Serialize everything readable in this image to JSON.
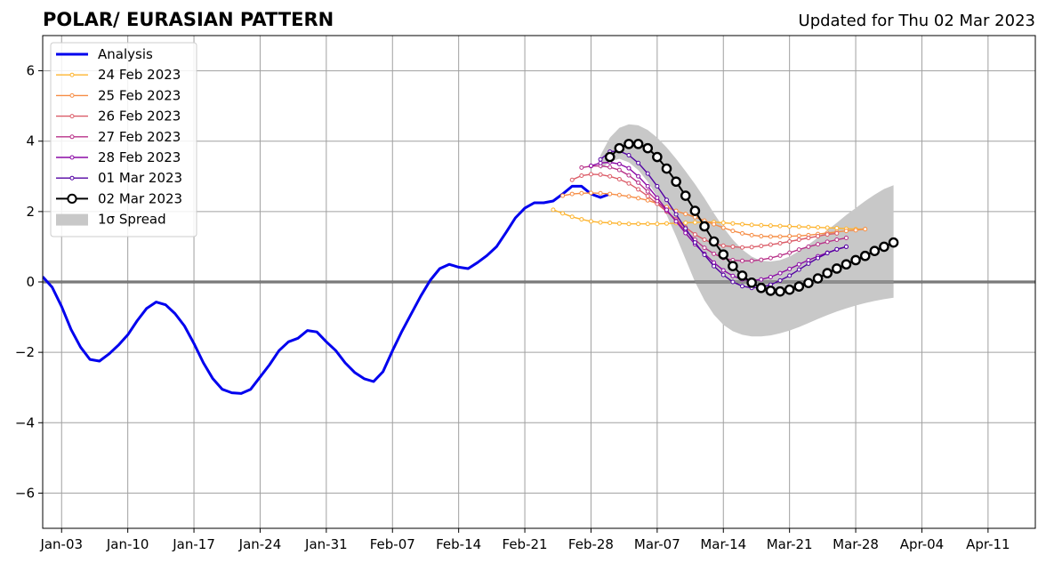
{
  "chart_data": {
    "type": "line",
    "title": "POLAR/ EURASIAN  PATTERN",
    "subtitle": "Updated for Thu 02 Mar 2023",
    "xlabel": "",
    "ylabel": "",
    "xlim": [
      "2023-01-01",
      "2023-04-16"
    ],
    "ylim": [
      -7,
      7
    ],
    "yticks": [
      -6,
      -4,
      -2,
      0,
      2,
      4,
      6
    ],
    "xticks": [
      {
        "date": "2023-01-03",
        "label": "Jan-03"
      },
      {
        "date": "2023-01-10",
        "label": "Jan-10"
      },
      {
        "date": "2023-01-17",
        "label": "Jan-17"
      },
      {
        "date": "2023-01-24",
        "label": "Jan-24"
      },
      {
        "date": "2023-01-31",
        "label": "Jan-31"
      },
      {
        "date": "2023-02-07",
        "label": "Feb-07"
      },
      {
        "date": "2023-02-14",
        "label": "Feb-14"
      },
      {
        "date": "2023-02-21",
        "label": "Feb-21"
      },
      {
        "date": "2023-02-28",
        "label": "Feb-28"
      },
      {
        "date": "2023-03-07",
        "label": "Mar-07"
      },
      {
        "date": "2023-03-14",
        "label": "Mar-14"
      },
      {
        "date": "2023-03-21",
        "label": "Mar-21"
      },
      {
        "date": "2023-03-28",
        "label": "Mar-28"
      },
      {
        "date": "2023-04-04",
        "label": "Apr-04"
      },
      {
        "date": "2023-04-11",
        "label": "Apr-11"
      }
    ],
    "grid": true,
    "legend_position": "top-left",
    "analysis": {
      "name": "Analysis",
      "color": "#0000ee",
      "start_date": "2023-01-01",
      "values": [
        0.15,
        -0.15,
        -0.7,
        -1.35,
        -1.85,
        -2.2,
        -2.25,
        -2.05,
        -1.8,
        -1.5,
        -1.1,
        -0.75,
        -0.57,
        -0.65,
        -0.9,
        -1.25,
        -1.75,
        -2.3,
        -2.75,
        -3.05,
        -3.15,
        -3.17,
        -3.05,
        -2.7,
        -2.35,
        -1.95,
        -1.7,
        -1.6,
        -1.38,
        -1.42,
        -1.7,
        -1.95,
        -2.3,
        -2.57,
        -2.75,
        -2.83,
        -2.55,
        -1.95,
        -1.4,
        -0.9,
        -0.4,
        0.05,
        0.38,
        0.5,
        0.42,
        0.38,
        0.55,
        0.75,
        1.0,
        1.4,
        1.82,
        2.1,
        2.25,
        2.25,
        2.3,
        2.5,
        2.72,
        2.72,
        2.5,
        2.4,
        2.5
      ]
    },
    "forecasts": [
      {
        "name": "24 Feb 2023",
        "color": "#fdb42f",
        "start_date": "2023-02-24",
        "values": [
          2.05,
          1.95,
          1.85,
          1.78,
          1.72,
          1.69,
          1.68,
          1.66,
          1.65,
          1.65,
          1.65,
          1.65,
          1.66,
          1.67,
          1.68,
          1.69,
          1.7,
          1.7,
          1.68,
          1.66,
          1.64,
          1.62,
          1.61,
          1.6,
          1.59,
          1.58,
          1.57,
          1.56,
          1.55,
          1.54,
          1.53,
          1.51,
          1.5,
          1.5
        ]
      },
      {
        "name": "25 Feb 2023",
        "color": "#f68d45",
        "start_date": "2023-02-25",
        "values": [
          2.45,
          2.5,
          2.52,
          2.53,
          2.52,
          2.5,
          2.47,
          2.43,
          2.38,
          2.32,
          2.23,
          2.13,
          2.02,
          1.93,
          1.84,
          1.74,
          1.64,
          1.54,
          1.45,
          1.38,
          1.33,
          1.3,
          1.29,
          1.29,
          1.3,
          1.31,
          1.33,
          1.36,
          1.39,
          1.42,
          1.45,
          1.47,
          1.5
        ]
      },
      {
        "name": "26 Feb 2023",
        "color": "#db5c68",
        "start_date": "2023-02-26",
        "values": [
          2.9,
          3.02,
          3.06,
          3.05,
          3.0,
          2.92,
          2.8,
          2.63,
          2.44,
          2.22,
          2.0,
          1.78,
          1.55,
          1.35,
          1.2,
          1.09,
          1.03,
          1.0,
          0.98,
          0.99,
          1.02,
          1.06,
          1.1,
          1.15,
          1.2,
          1.25,
          1.3,
          1.35,
          1.38
        ]
      },
      {
        "name": "27 Feb 2023",
        "color": "#b83289",
        "start_date": "2023-02-27",
        "values": [
          3.25,
          3.29,
          3.3,
          3.26,
          3.18,
          3.03,
          2.82,
          2.57,
          2.3,
          2.02,
          1.74,
          1.46,
          1.2,
          0.97,
          0.8,
          0.68,
          0.62,
          0.6,
          0.6,
          0.63,
          0.68,
          0.75,
          0.83,
          0.92,
          1.0,
          1.07,
          1.14,
          1.2,
          1.25
        ]
      },
      {
        "name": "28 Feb 2023",
        "color": "#8b0aa5",
        "start_date": "2023-02-28",
        "values": [
          3.3,
          3.38,
          3.4,
          3.35,
          3.23,
          3.0,
          2.72,
          2.39,
          2.05,
          1.72,
          1.39,
          1.07,
          0.8,
          0.55,
          0.33,
          0.17,
          0.07,
          0.04,
          0.07,
          0.14,
          0.25,
          0.37,
          0.5,
          0.62,
          0.73,
          0.83,
          0.92,
          1.0
        ]
      },
      {
        "name": "01 Mar 2023",
        "color": "#5302a3",
        "start_date": "2023-03-01",
        "values": [
          3.48,
          3.7,
          3.72,
          3.6,
          3.38,
          3.08,
          2.72,
          2.33,
          1.92,
          1.52,
          1.12,
          0.77,
          0.45,
          0.2,
          0.0,
          -0.12,
          -0.17,
          -0.15,
          -0.08,
          0.04,
          0.18,
          0.35,
          0.52,
          0.68,
          0.82,
          0.93,
          1.0
        ]
      },
      {
        "name": "02 Mar 2023",
        "color": "#000000",
        "start_date": "2023-03-02",
        "values": [
          3.55,
          3.8,
          3.92,
          3.92,
          3.8,
          3.55,
          3.22,
          2.85,
          2.45,
          2.02,
          1.58,
          1.15,
          0.78,
          0.45,
          0.18,
          -0.02,
          -0.17,
          -0.25,
          -0.27,
          -0.22,
          -0.13,
          -0.03,
          0.1,
          0.25,
          0.38,
          0.5,
          0.62,
          0.74,
          0.88,
          1.0,
          1.12
        ]
      }
    ],
    "spread": {
      "name": "1σ Spread",
      "color": "#c8c8c8",
      "start_date": "2023-03-01",
      "upper": [
        3.6,
        4.1,
        4.38,
        4.48,
        4.45,
        4.32,
        4.1,
        3.82,
        3.5,
        3.15,
        2.78,
        2.38,
        1.95,
        1.55,
        1.2,
        0.92,
        0.72,
        0.6,
        0.58,
        0.62,
        0.72,
        0.88,
        1.06,
        1.26,
        1.47,
        1.68,
        1.9,
        2.1,
        2.3,
        2.48,
        2.64,
        2.75
      ],
      "lower": [
        3.2,
        3.42,
        3.5,
        3.4,
        3.18,
        2.85,
        2.42,
        1.9,
        1.3,
        0.65,
        0.0,
        -0.52,
        -0.93,
        -1.22,
        -1.4,
        -1.5,
        -1.55,
        -1.55,
        -1.52,
        -1.46,
        -1.38,
        -1.28,
        -1.17,
        -1.05,
        -0.94,
        -0.84,
        -0.75,
        -0.67,
        -0.6,
        -0.54,
        -0.49,
        -0.45
      ]
    }
  }
}
